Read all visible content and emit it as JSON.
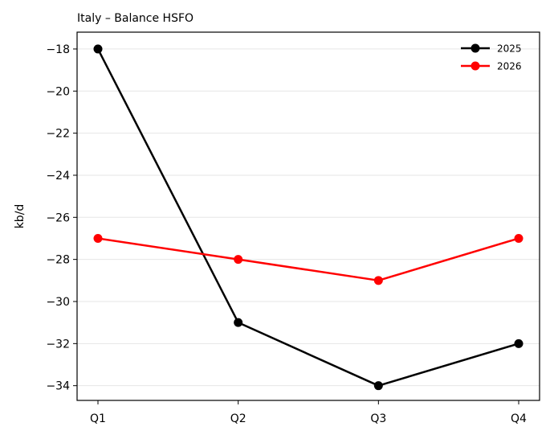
{
  "chart_data": {
    "type": "line",
    "title": "Italy – Balance HSFO",
    "xlabel": "",
    "ylabel": "kb/d",
    "categories": [
      "Q1",
      "Q2",
      "Q3",
      "Q4"
    ],
    "ylim": [
      -34.7,
      -17.2
    ],
    "yticks": [
      -18,
      -20,
      -22,
      -24,
      -26,
      -28,
      -30,
      -32,
      -34
    ],
    "ytick_labels": [
      "−18",
      "−20",
      "−22",
      "−24",
      "−26",
      "−28",
      "−30",
      "−32",
      "−34"
    ],
    "grid": "horizontal",
    "legend_position": "top-right",
    "series": [
      {
        "name": "2025",
        "color": "#000000",
        "values": [
          -18,
          -31,
          -34,
          -32
        ]
      },
      {
        "name": "2026",
        "color": "#ff0000",
        "values": [
          -27,
          -28,
          -29,
          -27
        ]
      }
    ]
  }
}
